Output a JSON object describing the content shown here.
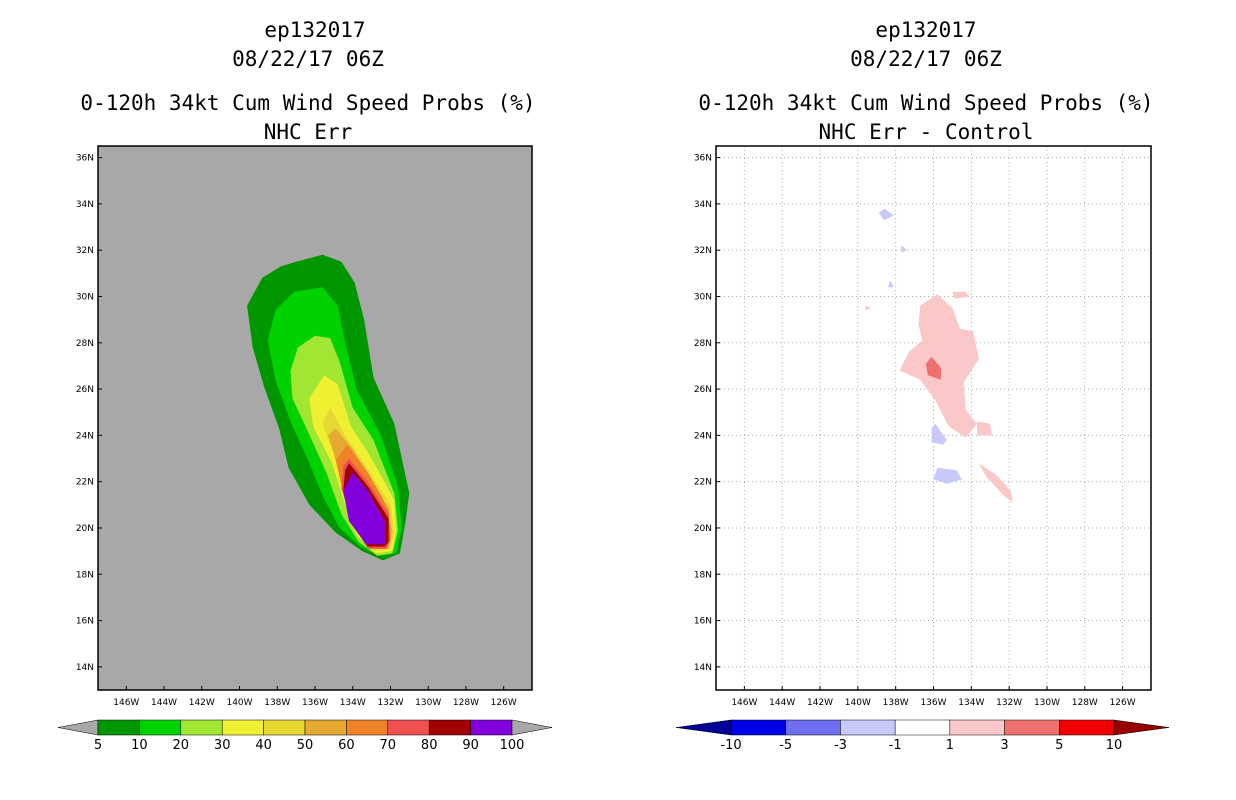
{
  "chart_data": [
    {
      "type": "heatmap",
      "subtype": "filled-contour-map",
      "storm_id": "ep132017",
      "datetime": "08/22/17 06Z",
      "title": "0-120h 34kt Cum Wind Speed Probs (%)",
      "subtitle": "NHC Err",
      "background_color": "#a8a8a8",
      "grid": false,
      "xlim_deg_w": [
        147.5,
        124.5
      ],
      "ylim_deg_n": [
        13,
        36.5
      ],
      "x_tick_labels": [
        "146W",
        "144W",
        "142W",
        "140W",
        "138W",
        "136W",
        "134W",
        "132W",
        "130W",
        "128W",
        "126W"
      ],
      "y_tick_labels": [
        "14N",
        "16N",
        "18N",
        "20N",
        "22N",
        "24N",
        "26N",
        "28N",
        "30N",
        "32N",
        "34N",
        "36N"
      ],
      "colorbar": {
        "labels": [
          "5",
          "10",
          "20",
          "30",
          "40",
          "50",
          "60",
          "70",
          "80",
          "90",
          "100"
        ],
        "colors": [
          "#009600",
          "#00d200",
          "#a0e632",
          "#f0f032",
          "#e6d732",
          "#e6aa32",
          "#f08228",
          "#f05050",
          "#a00000",
          "#8200dc"
        ],
        "end_color": "#a8a8a8"
      },
      "contours": [
        {
          "level": 5,
          "color": "#009600",
          "lonlat": [
            [
              -137.8,
              31.3
            ],
            [
              -137.0,
              31.5
            ],
            [
              -135.6,
              31.8
            ],
            [
              -134.6,
              31.5
            ],
            [
              -133.9,
              30.6
            ],
            [
              -133.4,
              29.0
            ],
            [
              -132.9,
              26.5
            ],
            [
              -131.8,
              24.5
            ],
            [
              -131.0,
              21.5
            ],
            [
              -131.2,
              20.3
            ],
            [
              -131.5,
              18.9
            ],
            [
              -132.4,
              18.6
            ],
            [
              -133.5,
              19.0
            ],
            [
              -134.9,
              19.8
            ],
            [
              -136.3,
              21.0
            ],
            [
              -137.4,
              22.6
            ],
            [
              -137.9,
              24.3
            ],
            [
              -138.7,
              26.1
            ],
            [
              -139.3,
              27.8
            ],
            [
              -139.6,
              29.6
            ],
            [
              -138.8,
              30.8
            ]
          ]
        },
        {
          "level": 10,
          "color": "#00d200",
          "lonlat": [
            [
              -137.1,
              30.2
            ],
            [
              -135.6,
              30.4
            ],
            [
              -134.8,
              29.6
            ],
            [
              -134.4,
              28.0
            ],
            [
              -133.8,
              26.0
            ],
            [
              -132.5,
              24.0
            ],
            [
              -131.6,
              21.8
            ],
            [
              -131.4,
              20.0
            ],
            [
              -131.7,
              18.9
            ],
            [
              -132.6,
              18.8
            ],
            [
              -133.6,
              19.2
            ],
            [
              -134.7,
              20.0
            ],
            [
              -135.6,
              21.4
            ],
            [
              -136.3,
              22.8
            ],
            [
              -137.3,
              24.6
            ],
            [
              -138.1,
              26.4
            ],
            [
              -138.5,
              28.1
            ],
            [
              -138.1,
              29.4
            ]
          ]
        },
        {
          "level": 20,
          "color": "#a0e632",
          "lonlat": [
            [
              -136.0,
              28.3
            ],
            [
              -135.2,
              28.2
            ],
            [
              -134.7,
              27.2
            ],
            [
              -134.0,
              25.2
            ],
            [
              -132.9,
              23.8
            ],
            [
              -131.8,
              21.5
            ],
            [
              -131.6,
              19.9
            ],
            [
              -131.9,
              18.9
            ],
            [
              -132.7,
              18.8
            ],
            [
              -133.7,
              19.4
            ],
            [
              -134.6,
              20.6
            ],
            [
              -135.4,
              22.4
            ],
            [
              -136.4,
              24.2
            ],
            [
              -137.2,
              25.6
            ],
            [
              -137.3,
              26.8
            ],
            [
              -136.9,
              27.8
            ]
          ]
        },
        {
          "level": 30,
          "color": "#f0f032",
          "lonlat": [
            [
              -135.5,
              26.6
            ],
            [
              -134.8,
              26.2
            ],
            [
              -134.1,
              24.4
            ],
            [
              -133.0,
              23.0
            ],
            [
              -131.8,
              21.2
            ],
            [
              -131.7,
              19.9
            ],
            [
              -131.9,
              19.0
            ],
            [
              -132.8,
              18.9
            ],
            [
              -133.8,
              19.7
            ],
            [
              -134.4,
              21.0
            ],
            [
              -135.1,
              22.8
            ],
            [
              -136.1,
              24.4
            ],
            [
              -136.3,
              25.6
            ]
          ]
        },
        {
          "level": 40,
          "color": "#e6d732",
          "lonlat": [
            [
              -135.2,
              25.2
            ],
            [
              -134.4,
              24.0
            ],
            [
              -133.4,
              22.8
            ],
            [
              -132.0,
              21.0
            ],
            [
              -131.8,
              19.8
            ],
            [
              -132.0,
              19.1
            ],
            [
              -132.9,
              19.0
            ],
            [
              -133.8,
              19.9
            ],
            [
              -134.3,
              21.2
            ],
            [
              -134.9,
              23.0
            ],
            [
              -135.6,
              24.5
            ]
          ]
        },
        {
          "level": 50,
          "color": "#e6aa32",
          "lonlat": [
            [
              -134.9,
              24.3
            ],
            [
              -134.0,
              23.4
            ],
            [
              -132.4,
              21.3
            ],
            [
              -131.9,
              19.9
            ],
            [
              -132.1,
              19.1
            ],
            [
              -133.0,
              19.1
            ],
            [
              -133.9,
              20.0
            ],
            [
              -134.4,
              21.5
            ],
            [
              -135.0,
              23.2
            ],
            [
              -135.3,
              24.0
            ]
          ]
        },
        {
          "level": 60,
          "color": "#f08228",
          "lonlat": [
            [
              -134.3,
              23.6
            ],
            [
              -133.2,
              22.4
            ],
            [
              -132.1,
              20.8
            ],
            [
              -132.0,
              19.6
            ],
            [
              -132.3,
              19.1
            ],
            [
              -133.1,
              19.1
            ],
            [
              -133.9,
              20.2
            ],
            [
              -134.5,
              21.5
            ],
            [
              -134.9,
              22.9
            ]
          ]
        },
        {
          "level": 70,
          "color": "#f05050",
          "lonlat": [
            [
              -134.2,
              23.0
            ],
            [
              -133.2,
              22.0
            ],
            [
              -132.1,
              20.6
            ],
            [
              -132.0,
              19.5
            ],
            [
              -132.2,
              19.1
            ],
            [
              -133.2,
              19.1
            ],
            [
              -134.0,
              20.2
            ],
            [
              -134.6,
              21.7
            ],
            [
              -134.5,
              22.7
            ]
          ]
        },
        {
          "level": 80,
          "color": "#a00000",
          "lonlat": [
            [
              -134.2,
              22.8
            ],
            [
              -133.2,
              21.8
            ],
            [
              -132.1,
              20.4
            ],
            [
              -132.1,
              19.4
            ],
            [
              -132.3,
              19.2
            ],
            [
              -133.2,
              19.2
            ],
            [
              -134.0,
              20.3
            ],
            [
              -134.5,
              21.6
            ],
            [
              -134.4,
              22.5
            ]
          ]
        },
        {
          "level": 90,
          "color": "#8200dc",
          "lonlat": [
            [
              -134.0,
              22.4
            ],
            [
              -133.2,
              21.6
            ],
            [
              -132.3,
              20.3
            ],
            [
              -132.3,
              19.3
            ],
            [
              -133.3,
              19.3
            ],
            [
              -134.2,
              20.3
            ],
            [
              -134.5,
              21.6
            ]
          ]
        }
      ]
    },
    {
      "type": "heatmap",
      "subtype": "filled-contour-map-difference",
      "storm_id": "ep132017",
      "datetime": "08/22/17 06Z",
      "title": "0-120h 34kt Cum Wind Speed Probs (%)",
      "subtitle": "NHC Err - Control",
      "background_color": "#ffffff",
      "grid": true,
      "xlim_deg_w": [
        147.5,
        124.5
      ],
      "ylim_deg_n": [
        13,
        36.5
      ],
      "x_tick_labels": [
        "146W",
        "144W",
        "142W",
        "140W",
        "138W",
        "136W",
        "134W",
        "132W",
        "130W",
        "128W",
        "126W"
      ],
      "y_tick_labels": [
        "14N",
        "16N",
        "18N",
        "20N",
        "22N",
        "24N",
        "26N",
        "28N",
        "30N",
        "32N",
        "34N",
        "36N"
      ],
      "colorbar": {
        "labels": [
          "-10",
          "-5",
          "-3",
          "-1",
          "1",
          "3",
          "5",
          "10"
        ],
        "colors": [
          "#0000e6",
          "#6e6ef0",
          "#c8c8fa",
          "#ffffff",
          "#fac8c8",
          "#f07070",
          "#f00000"
        ],
        "end_low": "#000096",
        "end_high": "#960000"
      },
      "contours": [
        {
          "level": 1,
          "color": "#fac8c8",
          "lonlat": [
            [
              -136.7,
              29.6
            ],
            [
              -135.8,
              30.1
            ],
            [
              -135.0,
              29.5
            ],
            [
              -134.6,
              28.6
            ],
            [
              -133.9,
              28.5
            ],
            [
              -133.6,
              27.3
            ],
            [
              -134.4,
              26.3
            ],
            [
              -134.3,
              25.1
            ],
            [
              -133.7,
              24.5
            ],
            [
              -134.3,
              23.9
            ],
            [
              -135.2,
              24.4
            ],
            [
              -135.9,
              25.5
            ],
            [
              -136.7,
              26.4
            ],
            [
              -137.8,
              26.8
            ],
            [
              -137.3,
              27.6
            ],
            [
              -136.6,
              28.1
            ],
            [
              -136.8,
              28.8
            ]
          ]
        },
        {
          "level": 1,
          "color": "#fac8c8",
          "lonlat": [
            [
              -133.7,
              24.6
            ],
            [
              -133.0,
              24.5
            ],
            [
              -132.9,
              24.0
            ],
            [
              -133.7,
              24.0
            ]
          ]
        },
        {
          "level": 1,
          "color": "#fac8c8",
          "lonlat": [
            [
              -133.6,
              22.8
            ],
            [
              -132.7,
              22.3
            ],
            [
              -131.9,
              21.6
            ],
            [
              -131.8,
              21.1
            ],
            [
              -132.3,
              21.4
            ],
            [
              -133.2,
              22.2
            ]
          ]
        },
        {
          "level": 1,
          "color": "#fac8c8",
          "lonlat": [
            [
              -135.0,
              30.2
            ],
            [
              -134.3,
              30.2
            ],
            [
              -134.1,
              30.0
            ],
            [
              -134.9,
              29.9
            ]
          ]
        },
        {
          "level": 1,
          "color": "#fac8c8",
          "lonlat": [
            [
              -139.6,
              29.6
            ],
            [
              -139.3,
              29.5
            ],
            [
              -139.6,
              29.4
            ]
          ]
        },
        {
          "level": 3,
          "color": "#f07070",
          "lonlat": [
            [
              -136.1,
              27.4
            ],
            [
              -135.6,
              26.9
            ],
            [
              -135.6,
              26.4
            ],
            [
              -136.3,
              26.6
            ],
            [
              -136.4,
              27.1
            ]
          ]
        },
        {
          "level": -1,
          "color": "#c8c8fa",
          "lonlat": [
            [
              -138.6,
              33.8
            ],
            [
              -138.1,
              33.5
            ],
            [
              -138.6,
              33.3
            ],
            [
              -138.9,
              33.6
            ]
          ]
        },
        {
          "level": -1,
          "color": "#c8c8fa",
          "lonlat": [
            [
              -137.7,
              32.2
            ],
            [
              -137.4,
              32.0
            ],
            [
              -137.7,
              31.9
            ]
          ]
        },
        {
          "level": -1,
          "color": "#c8c8fa",
          "lonlat": [
            [
              -138.3,
              30.7
            ],
            [
              -138.1,
              30.4
            ],
            [
              -138.4,
              30.4
            ]
          ]
        },
        {
          "level": -1,
          "color": "#c8c8fa",
          "lonlat": [
            [
              -135.9,
              24.5
            ],
            [
              -135.3,
              23.8
            ],
            [
              -135.5,
              23.6
            ],
            [
              -136.1,
              23.7
            ],
            [
              -136.1,
              24.3
            ]
          ]
        },
        {
          "level": -1,
          "color": "#c8c8fa",
          "lonlat": [
            [
              -135.8,
              22.6
            ],
            [
              -134.8,
              22.5
            ],
            [
              -134.5,
              22.1
            ],
            [
              -135.3,
              21.9
            ],
            [
              -136.0,
              22.1
            ]
          ]
        }
      ]
    }
  ]
}
